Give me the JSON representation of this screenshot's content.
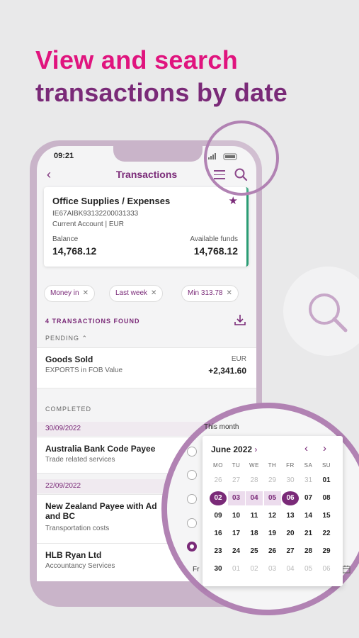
{
  "headline": {
    "line1": "View and search",
    "line2": "transactions by date"
  },
  "colors": {
    "brand_pink": "#e0147e",
    "brand_purple": "#7a2a78",
    "accent_green": "#2a9c74"
  },
  "status_bar": {
    "time": "09:21"
  },
  "nav": {
    "title": "Transactions",
    "back_icon": "chevron-left-icon",
    "menu_icon": "menu-icon",
    "search_icon": "search-icon"
  },
  "account": {
    "name": "Office Supplies / Expenses",
    "iban": "IE67AIBK93132200031333",
    "type": "Current Account",
    "currency": "EUR",
    "balance_label": "Balance",
    "balance": "14,768.12",
    "available_label": "Available funds",
    "available": "14,768.12"
  },
  "filters": [
    {
      "label": "Money in"
    },
    {
      "label": "Last week"
    },
    {
      "label": "Min 313.78"
    }
  ],
  "found_text": "4 TRANSACTIONS FOUND",
  "pending": {
    "label": "PENDING",
    "items": [
      {
        "title": "Goods Sold",
        "desc": "EXPORTS in FOB Value",
        "currency": "EUR",
        "amount": "+2,341.60"
      }
    ]
  },
  "completed": {
    "label": "COMPLETED",
    "groups": [
      {
        "date": "30/09/2022",
        "items": [
          {
            "title": "Australia Bank Code Payee",
            "desc": "Trade related services"
          }
        ]
      },
      {
        "date": "22/09/2022",
        "items": [
          {
            "title": "New Zealand Payee with Ad",
            "title2": "and BC",
            "desc": "Transportation costs"
          },
          {
            "title": "HLB Ryan Ltd",
            "desc": "Accountancy Services"
          }
        ]
      }
    ]
  },
  "date_picker": {
    "this_month": "This month",
    "month": "June 2022",
    "weekdays": [
      "MO",
      "TU",
      "WE",
      "TH",
      "FR",
      "SA",
      "SU"
    ],
    "weeks": [
      [
        "26",
        "27",
        "28",
        "29",
        "30",
        "31",
        "01"
      ],
      [
        "02",
        "03",
        "04",
        "05",
        "06",
        "07",
        "08"
      ],
      [
        "09",
        "10",
        "11",
        "12",
        "13",
        "14",
        "15"
      ],
      [
        "16",
        "17",
        "18",
        "19",
        "20",
        "21",
        "22"
      ],
      [
        "23",
        "24",
        "25",
        "26",
        "27",
        "28",
        "29"
      ],
      [
        "30",
        "01",
        "02",
        "03",
        "04",
        "05",
        "06"
      ]
    ],
    "from_label": "Fr"
  }
}
